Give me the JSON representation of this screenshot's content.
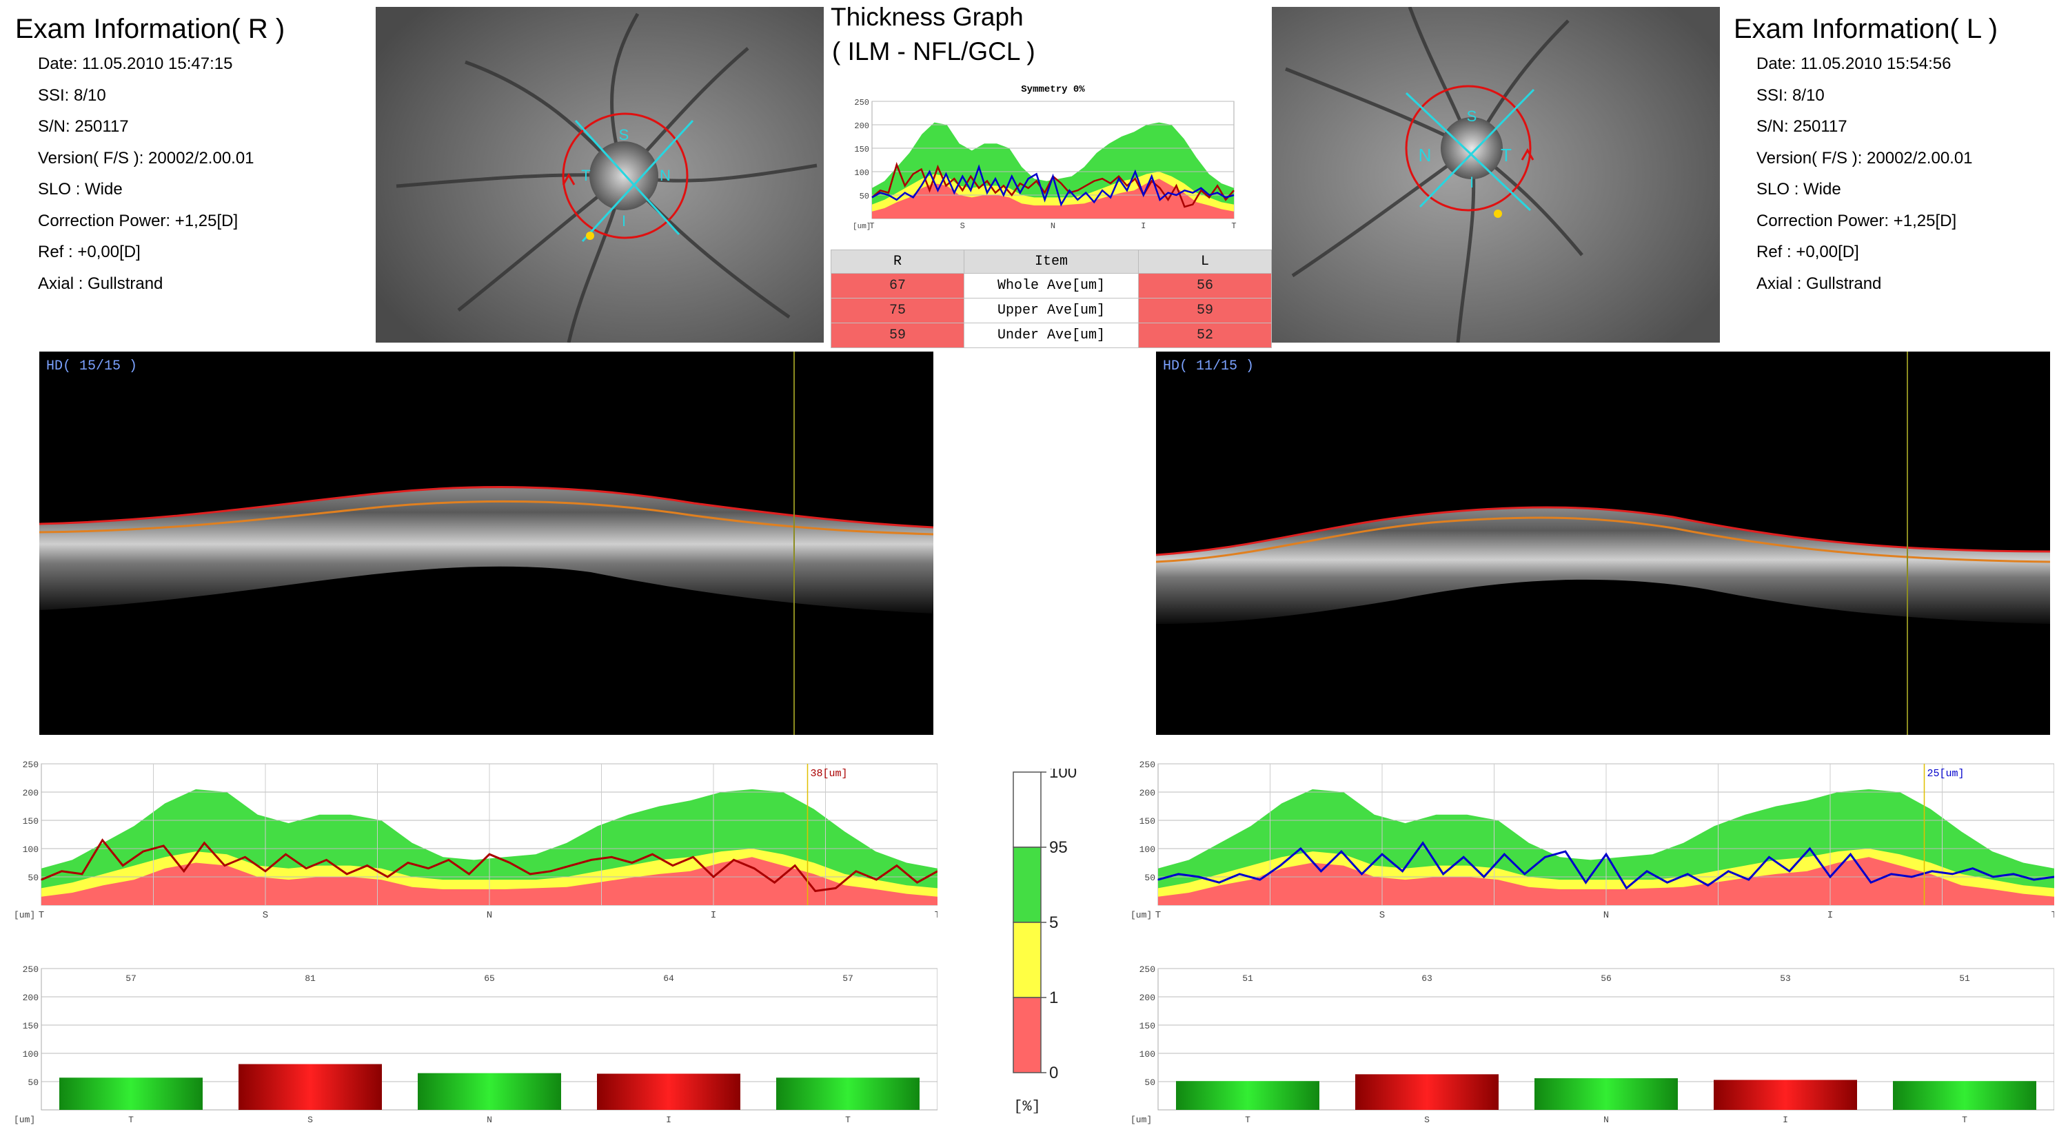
{
  "right_exam": {
    "title": "Exam Information( R )",
    "fields": [
      {
        "label": "Date: 11.05.2010 15:47:15"
      },
      {
        "label": "SSI:  8/10"
      },
      {
        "label": "S/N: 250117"
      },
      {
        "label": "Version( F/S ): 20002/2.00.01"
      },
      {
        "label": "SLO : Wide"
      },
      {
        "label": "Correction Power: +1,25[D]"
      },
      {
        "label": "Ref : +0,00[D]"
      },
      {
        "label": "Axial : Gullstrand"
      }
    ]
  },
  "left_exam": {
    "title": "Exam Information( L )",
    "fields": [
      {
        "label": "Date: 11.05.2010 15:54:56"
      },
      {
        "label": "SSI:  8/10"
      },
      {
        "label": "S/N: 250117"
      },
      {
        "label": "Version( F/S ): 20002/2.00.01"
      },
      {
        "label": "SLO : Wide"
      },
      {
        "label": "Correction Power: +1,25[D]"
      },
      {
        "label": "Ref : +0,00[D]"
      },
      {
        "label": "Axial : Gullstrand"
      }
    ]
  },
  "fundus_right": {
    "labels": {
      "s": "S",
      "t": "T",
      "n": "N",
      "i": "I"
    }
  },
  "fundus_left": {
    "labels": {
      "s": "S",
      "t": "T",
      "n": "N",
      "i": "I"
    }
  },
  "thickness": {
    "title_line1": "Thickness Graph",
    "title_line2": "( ILM - NFL/GCL )",
    "symmetry": "Symmetry 0%",
    "table": {
      "headers": {
        "r": "R",
        "item": "Item",
        "l": "L"
      },
      "rows": [
        {
          "r": "67",
          "item": "Whole Ave[um]",
          "l": "56"
        },
        {
          "r": "75",
          "item": "Upper Ave[um]",
          "l": "59"
        },
        {
          "r": "59",
          "item": "Under Ave[um]",
          "l": "52"
        }
      ]
    }
  },
  "oct_right": {
    "label": "HD( 15/15 )"
  },
  "oct_left": {
    "label": "HD( 11/15 )"
  },
  "legend": {
    "unit": "[%]",
    "ticks": [
      "100",
      "95",
      "5",
      "1",
      "0"
    ],
    "colors": [
      "#ffffff",
      "#44dd44",
      "#ffff44",
      "#ff6666"
    ]
  },
  "chart_data": [
    {
      "type": "line",
      "id": "right_profile",
      "xlabel_unit": "[um]",
      "x_ticks": [
        "T",
        "S",
        "N",
        "I",
        "T"
      ],
      "y_ticks": [
        50,
        100,
        150,
        200,
        250
      ],
      "ylim": [
        0,
        250
      ],
      "cursor_label": "38[um]",
      "series_color": "#aa0000",
      "normative_pct95": [
        65,
        80,
        110,
        140,
        180,
        205,
        200,
        160,
        145,
        160,
        160,
        150,
        110,
        85,
        80,
        85,
        90,
        110,
        140,
        160,
        175,
        185,
        200,
        205,
        200,
        170,
        130,
        95,
        75,
        65
      ],
      "normative_pct5": [
        30,
        40,
        55,
        70,
        85,
        95,
        90,
        70,
        65,
        70,
        70,
        65,
        50,
        45,
        45,
        45,
        45,
        50,
        60,
        70,
        80,
        85,
        95,
        100,
        90,
        75,
        55,
        45,
        35,
        30
      ],
      "normative_pct1": [
        15,
        22,
        35,
        45,
        65,
        75,
        70,
        50,
        45,
        50,
        50,
        45,
        32,
        28,
        28,
        28,
        30,
        32,
        40,
        48,
        55,
        60,
        75,
        85,
        70,
        55,
        35,
        28,
        20,
        15
      ],
      "values": [
        45,
        60,
        55,
        115,
        70,
        95,
        105,
        60,
        110,
        70,
        85,
        60,
        90,
        65,
        80,
        55,
        70,
        50,
        75,
        65,
        80,
        55,
        90,
        75,
        55,
        60,
        70,
        80,
        85,
        75,
        90,
        70,
        85,
        50,
        80,
        65,
        40,
        70,
        25,
        30,
        60,
        45,
        70,
        40,
        60
      ]
    },
    {
      "type": "line",
      "id": "left_profile",
      "xlabel_unit": "[um]",
      "x_ticks": [
        "T",
        "S",
        "N",
        "I",
        "T"
      ],
      "y_ticks": [
        50,
        100,
        150,
        200,
        250
      ],
      "ylim": [
        0,
        250
      ],
      "cursor_label": "25[um]",
      "series_color": "#0000cc",
      "normative_pct95": [
        65,
        80,
        110,
        140,
        180,
        205,
        200,
        160,
        145,
        160,
        160,
        150,
        110,
        85,
        80,
        85,
        90,
        110,
        140,
        160,
        175,
        185,
        200,
        205,
        200,
        170,
        130,
        95,
        75,
        65
      ],
      "normative_pct5": [
        30,
        40,
        55,
        70,
        85,
        95,
        90,
        70,
        65,
        70,
        70,
        65,
        50,
        45,
        45,
        45,
        45,
        50,
        60,
        70,
        80,
        85,
        95,
        100,
        90,
        75,
        55,
        45,
        35,
        30
      ],
      "normative_pct1": [
        15,
        22,
        35,
        45,
        65,
        75,
        70,
        50,
        45,
        50,
        50,
        45,
        32,
        28,
        28,
        28,
        30,
        32,
        40,
        48,
        55,
        60,
        75,
        85,
        70,
        55,
        35,
        28,
        20,
        15
      ],
      "values": [
        45,
        55,
        50,
        40,
        55,
        45,
        70,
        100,
        60,
        95,
        55,
        90,
        60,
        110,
        55,
        85,
        50,
        90,
        55,
        85,
        95,
        40,
        90,
        30,
        60,
        40,
        55,
        35,
        60,
        45,
        85,
        60,
        100,
        50,
        90,
        40,
        55,
        50,
        60,
        55,
        65,
        50,
        55,
        45,
        50
      ]
    },
    {
      "type": "bar",
      "id": "right_sectors",
      "xlabel_unit": "[um]",
      "categories": [
        "T",
        "S",
        "N",
        "I",
        "T"
      ],
      "values": [
        57,
        81,
        65,
        64,
        57
      ],
      "colors": [
        "green",
        "red",
        "green",
        "red",
        "green"
      ],
      "y_ticks": [
        50,
        100,
        150,
        200,
        250
      ],
      "ylim": [
        0,
        250
      ]
    },
    {
      "type": "bar",
      "id": "left_sectors",
      "xlabel_unit": "[um]",
      "categories": [
        "T",
        "S",
        "N",
        "I",
        "T"
      ],
      "values": [
        51,
        63,
        56,
        53,
        51
      ],
      "colors": [
        "green",
        "red",
        "green",
        "red",
        "green"
      ],
      "y_ticks": [
        50,
        100,
        150,
        200,
        250
      ],
      "ylim": [
        0,
        250
      ]
    },
    {
      "type": "line",
      "id": "symmetry_mini",
      "x_ticks": [
        "T",
        "S",
        "N",
        "I",
        "T"
      ],
      "y_ticks": [
        50,
        100,
        150,
        200,
        250
      ],
      "ylim": [
        0,
        250
      ],
      "xlabel_unit": "[um]"
    }
  ]
}
